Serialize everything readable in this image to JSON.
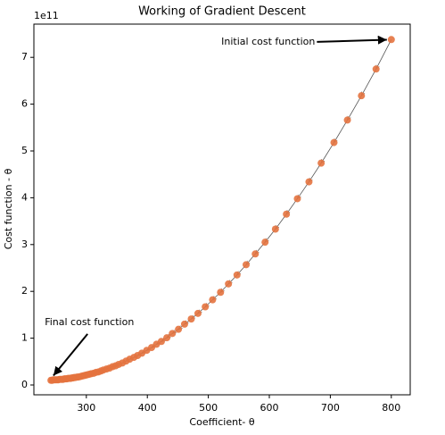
{
  "chart_data": {
    "type": "scatter",
    "title": "Working of Gradient Descent",
    "x_label": "Coefficient- θ",
    "y_label": "Cost function - θ",
    "y_offset_text": "1e11",
    "color": "#e4733f",
    "line_color": "#555555",
    "xlim": [
      214,
      831
    ],
    "ylim": [
      -0.21,
      7.71
    ],
    "xticks": [
      300,
      400,
      500,
      600,
      700,
      800
    ],
    "yticks": [
      0,
      1,
      2,
      3,
      4,
      5,
      6,
      7
    ],
    "x": [
      800,
      775,
      751,
      728,
      706,
      685,
      665,
      646,
      628,
      610,
      593,
      577,
      562,
      547,
      533,
      520,
      507,
      495,
      483,
      472,
      461,
      451,
      441,
      432,
      423,
      415,
      407,
      399,
      391,
      384,
      378,
      371,
      365,
      359,
      353,
      348,
      343,
      338,
      333,
      328,
      324,
      320,
      316,
      312,
      308,
      305,
      302,
      299,
      296,
      293,
      290,
      287,
      285,
      282,
      280,
      278,
      276,
      274,
      272,
      270,
      268,
      266,
      264,
      262,
      260,
      258,
      256,
      254,
      252,
      250,
      248,
      246,
      244,
      242
    ],
    "values": [
      7.38,
      6.75,
      6.18,
      5.66,
      5.18,
      4.74,
      4.34,
      3.98,
      3.65,
      3.33,
      3.05,
      2.8,
      2.57,
      2.35,
      2.16,
      1.98,
      1.82,
      1.67,
      1.53,
      1.41,
      1.3,
      1.19,
      1.1,
      1.01,
      0.93,
      0.87,
      0.8,
      0.74,
      0.68,
      0.63,
      0.59,
      0.55,
      0.51,
      0.47,
      0.44,
      0.41,
      0.39,
      0.36,
      0.34,
      0.32,
      0.3,
      0.28,
      0.27,
      0.25,
      0.24,
      0.23,
      0.22,
      0.21,
      0.2,
      0.19,
      0.18,
      0.17,
      0.17,
      0.16,
      0.16,
      0.15,
      0.15,
      0.14,
      0.14,
      0.14,
      0.13,
      0.13,
      0.13,
      0.12,
      0.12,
      0.12,
      0.12,
      0.11,
      0.11,
      0.11,
      0.11,
      0.11,
      0.1,
      0.1
    ],
    "annotations": [
      {
        "text": "Initial cost function",
        "xy": [
          800,
          7.38
        ],
        "xytext": [
          678,
          7.33
        ]
      },
      {
        "text": "Final cost function",
        "xy": [
          246,
          0.2
        ],
        "xytext": [
          302,
          1.09
        ]
      }
    ]
  }
}
